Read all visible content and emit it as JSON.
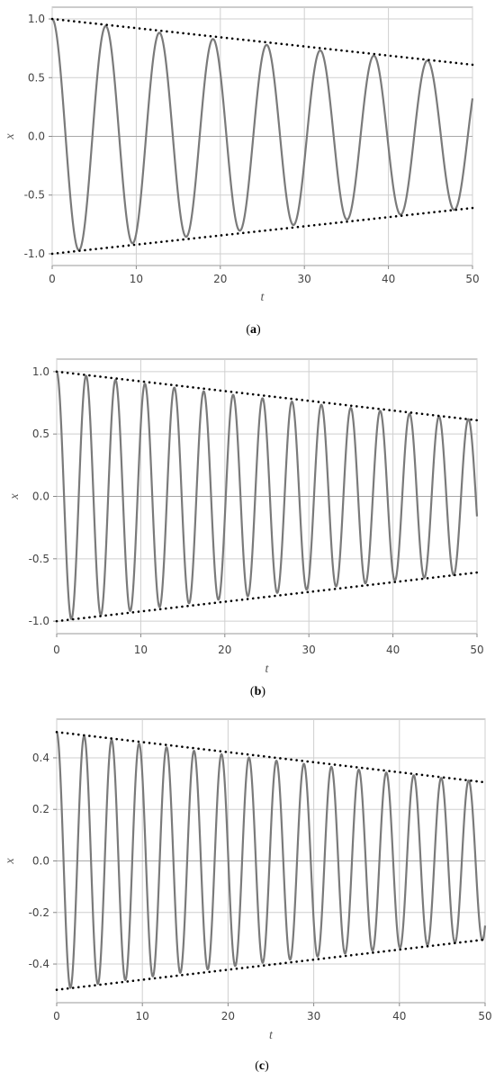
{
  "chart_data": [
    {
      "type": "line",
      "caption": "(a)",
      "caption_letter": "a",
      "xlabel": "t",
      "ylabel": "x",
      "xlim": [
        0,
        50
      ],
      "ylim": [
        -1.1,
        1.1
      ],
      "xticks": [
        0,
        10,
        20,
        30,
        40,
        50
      ],
      "xtick_labels": [
        "0",
        "10",
        "20",
        "30",
        "40",
        "50"
      ],
      "yticks": [
        1.0,
        0.5,
        0.0,
        -0.5,
        -1.0
      ],
      "ytick_labels": [
        "1.0",
        "0.5",
        "0.0",
        "-0.5",
        "-1.0"
      ],
      "grid": true,
      "series": [
        {
          "style": "solid",
          "color": "#7a7a7a",
          "function": "x(t) = A0*exp(-k t)*cos(w t)",
          "amplitude": 1.0,
          "decay_rate": 0.0098,
          "angular_frequency": 0.985,
          "t_range": [
            0,
            50
          ]
        },
        {
          "style": "dotted",
          "color": "#000000",
          "x": [
            0,
            50
          ],
          "y": [
            1.0,
            0.61
          ]
        },
        {
          "style": "dotted",
          "color": "#000000",
          "x": [
            0,
            50
          ],
          "y": [
            -1.0,
            -0.61
          ]
        }
      ]
    },
    {
      "type": "line",
      "caption": "(b)",
      "caption_letter": "b",
      "xlabel": "t",
      "ylabel": "x",
      "xlim": [
        0,
        50
      ],
      "ylim": [
        -1.1,
        1.1
      ],
      "xticks": [
        0,
        10,
        20,
        30,
        40,
        50
      ],
      "xtick_labels": [
        "0",
        "10",
        "20",
        "30",
        "40",
        "50"
      ],
      "yticks": [
        1.0,
        0.5,
        0.0,
        -0.5,
        -1.0
      ],
      "ytick_labels": [
        "1.0",
        "0.5",
        "0.0",
        "-0.5",
        "-1.0"
      ],
      "grid": true,
      "series": [
        {
          "style": "solid",
          "color": "#7a7a7a",
          "function": "x(t) = A0*exp(-k t)*cos(w t)",
          "amplitude": 1.0,
          "decay_rate": 0.0098,
          "angular_frequency": 1.796,
          "t_range": [
            0,
            50
          ]
        },
        {
          "style": "dotted",
          "color": "#000000",
          "x": [
            0,
            50
          ],
          "y": [
            1.0,
            0.61
          ]
        },
        {
          "style": "dotted",
          "color": "#000000",
          "x": [
            0,
            50
          ],
          "y": [
            -1.0,
            -0.61
          ]
        }
      ]
    },
    {
      "type": "line",
      "caption": "(c)",
      "caption_letter": "c",
      "xlabel": "t",
      "ylabel": "x",
      "xlim": [
        0,
        50
      ],
      "ylim": [
        -0.55,
        0.55
      ],
      "xticks": [
        0,
        10,
        20,
        30,
        40,
        50
      ],
      "xtick_labels": [
        "0",
        "10",
        "20",
        "30",
        "40",
        "50"
      ],
      "yticks": [
        0.4,
        0.2,
        0.0,
        -0.2,
        -0.4
      ],
      "ytick_labels": [
        "0.4",
        "0.2",
        "0.0",
        "-0.2",
        "-0.4"
      ],
      "grid": true,
      "series": [
        {
          "style": "solid",
          "color": "#7a7a7a",
          "function": "x(t) = A0*exp(-k t)*cos(w t)",
          "amplitude": 0.5,
          "decay_rate": 0.0098,
          "angular_frequency": 1.96,
          "t_range": [
            0,
            50
          ]
        },
        {
          "style": "dotted",
          "color": "#000000",
          "x": [
            0,
            50
          ],
          "y": [
            0.5,
            0.305
          ]
        },
        {
          "style": "dotted",
          "color": "#000000",
          "x": [
            0,
            50
          ],
          "y": [
            -0.5,
            -0.305
          ]
        }
      ]
    }
  ]
}
